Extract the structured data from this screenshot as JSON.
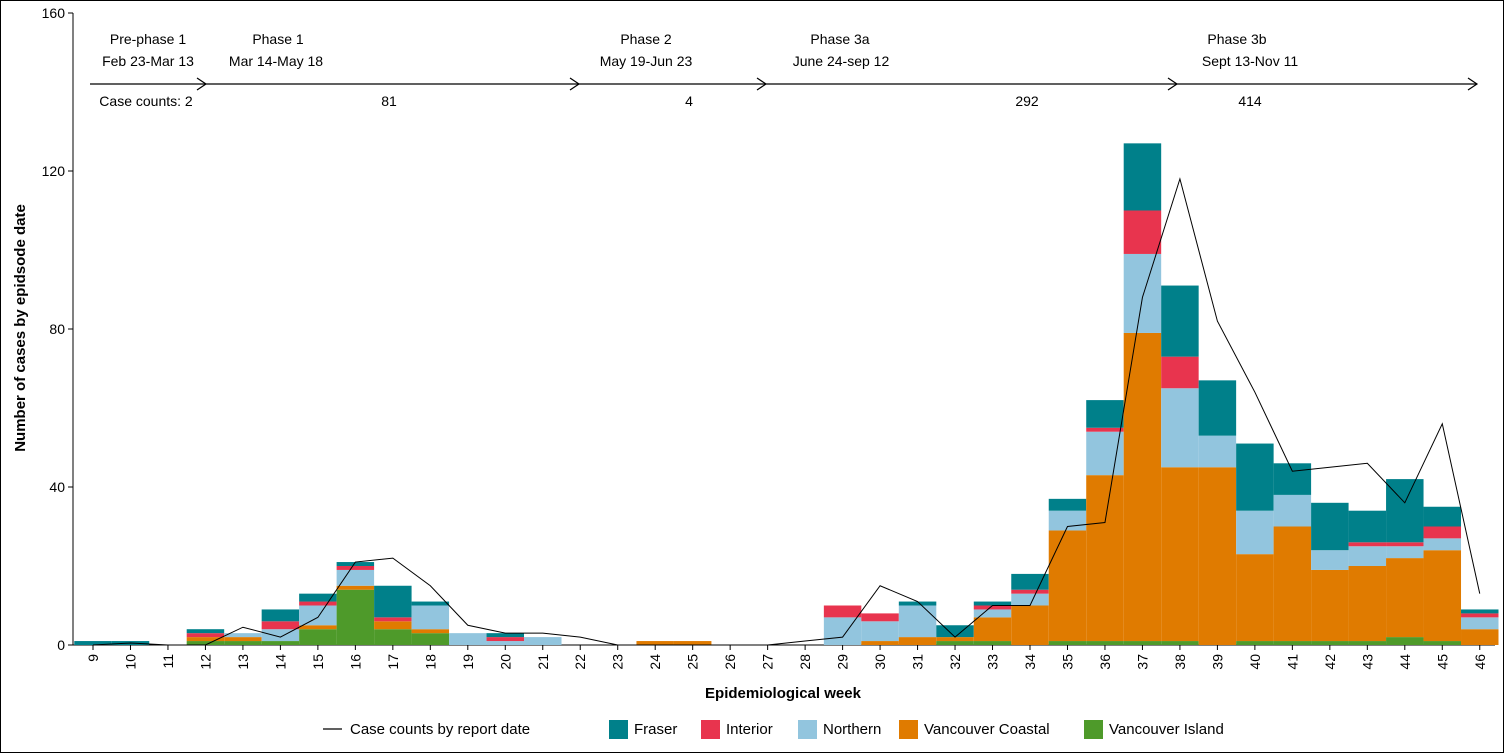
{
  "chart_data": {
    "type": "bar",
    "stacked": true,
    "xlabel": "Epidemiological week",
    "ylabel": "Number of cases by epidsode date",
    "ylim": [
      0,
      160
    ],
    "yticks": [
      0,
      40,
      80,
      120,
      160
    ],
    "categories": [
      "9",
      "10",
      "11",
      "12",
      "13",
      "14",
      "15",
      "16",
      "17",
      "18",
      "19",
      "20",
      "21",
      "22",
      "23",
      "24",
      "25",
      "26",
      "27",
      "28",
      "29",
      "30",
      "31",
      "32",
      "33",
      "34",
      "35",
      "36",
      "37",
      "38",
      "39",
      "40",
      "41",
      "42",
      "43",
      "44",
      "45",
      "46"
    ],
    "series": [
      {
        "name": "Vancouver Island",
        "color": "#4e9a2a",
        "values": [
          0,
          0,
          0,
          1,
          1,
          1,
          4,
          14,
          4,
          3,
          0,
          0,
          0,
          0,
          0,
          0,
          0,
          0,
          0,
          0,
          0,
          0,
          0,
          1,
          1,
          0,
          1,
          1,
          1,
          1,
          0,
          1,
          1,
          1,
          1,
          2,
          1,
          0
        ]
      },
      {
        "name": "Vancouver Coastal",
        "color": "#e07b00",
        "values": [
          0,
          0,
          0,
          1,
          1,
          0,
          1,
          1,
          2,
          1,
          0,
          0,
          0,
          0,
          0,
          1,
          1,
          0,
          0,
          0,
          0,
          1,
          2,
          1,
          6,
          10,
          28,
          42,
          78,
          44,
          45,
          22,
          29,
          18,
          19,
          20,
          23,
          4
        ]
      },
      {
        "name": "Northern",
        "color": "#92c5de",
        "values": [
          0,
          0,
          0,
          0,
          1,
          3,
          5,
          4,
          0,
          6,
          3,
          1,
          2,
          0,
          0,
          0,
          0,
          0,
          0,
          0,
          7,
          5,
          8,
          0,
          2,
          3,
          5,
          11,
          20,
          20,
          8,
          11,
          8,
          5,
          5,
          3,
          3,
          3
        ]
      },
      {
        "name": "Interior",
        "color": "#e8344e",
        "values": [
          0,
          0,
          0,
          1,
          0,
          2,
          1,
          1,
          1,
          0,
          0,
          1,
          0,
          0,
          0,
          0,
          0,
          0,
          0,
          0,
          3,
          2,
          0,
          0,
          1,
          1,
          0,
          1,
          11,
          8,
          0,
          0,
          0,
          0,
          1,
          1,
          3,
          1
        ]
      },
      {
        "name": "Fraser",
        "color": "#00808a",
        "values": [
          1,
          1,
          0,
          1,
          0,
          3,
          2,
          1,
          8,
          1,
          0,
          1,
          0,
          0,
          0,
          0,
          0,
          0,
          0,
          0,
          0,
          0,
          1,
          3,
          1,
          4,
          3,
          7,
          17,
          18,
          14,
          17,
          8,
          12,
          8,
          16,
          5,
          1
        ]
      }
    ],
    "line": {
      "name": "Case counts by report date",
      "color": "#000000",
      "values": [
        0,
        0.5,
        0,
        0,
        4.5,
        2,
        7,
        21,
        22,
        15,
        5,
        3,
        3,
        2,
        0,
        0,
        0,
        0,
        0,
        1,
        2,
        15,
        11,
        2,
        10,
        10,
        30,
        31,
        88,
        118,
        82,
        64,
        44,
        45,
        46,
        36,
        56,
        13
      ]
    },
    "phases": [
      {
        "name": "Pre-phase 1",
        "dates": "Feb 23-Mar 13",
        "count_label": "Case counts: 2"
      },
      {
        "name": "Phase 1",
        "dates": "Mar 14-May 18",
        "count_label": "81"
      },
      {
        "name": "Phase 2",
        "dates": "May 19-Jun 23",
        "count_label": "4"
      },
      {
        "name": "Phase 3a",
        "dates": "June 24-sep 12",
        "count_label": "292"
      },
      {
        "name": "Phase 3b",
        "dates": "Sept 13-Nov 11",
        "count_label": "414"
      }
    ],
    "legend": {
      "placement": "bottom",
      "line_entry": "Case counts by report date",
      "entries": [
        "Fraser",
        "Interior",
        "Northern",
        "Vancouver Coastal",
        "Vancouver Island"
      ]
    }
  }
}
